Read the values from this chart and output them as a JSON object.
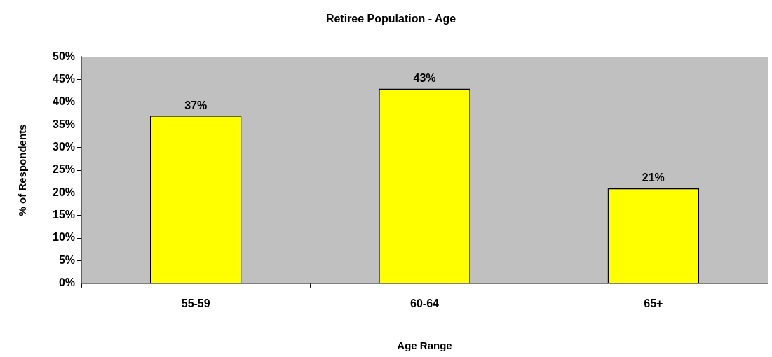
{
  "chart_data": {
    "type": "bar",
    "title": "Retiree Population - Age",
    "xlabel": "Age Range",
    "ylabel": "% of Respondents",
    "categories": [
      "55-59",
      "60-64",
      "65+"
    ],
    "series": [
      {
        "color": "#ffff00",
        "values": [
          37,
          43,
          21
        ],
        "value_labels": [
          "37%",
          "43%",
          "21%"
        ]
      }
    ],
    "ylim": [
      0,
      50
    ],
    "yticks": [
      {
        "value": 0,
        "label": "0%"
      },
      {
        "value": 5,
        "label": "5%"
      },
      {
        "value": 10,
        "label": "10%"
      },
      {
        "value": 15,
        "label": "15%"
      },
      {
        "value": 20,
        "label": "20%"
      },
      {
        "value": 25,
        "label": "25%"
      },
      {
        "value": 30,
        "label": "30%"
      },
      {
        "value": 35,
        "label": "35%"
      },
      {
        "value": 40,
        "label": "40%"
      },
      {
        "value": 45,
        "label": "45%"
      },
      {
        "value": 50,
        "label": "50%"
      }
    ],
    "grid": false,
    "legend": false
  }
}
